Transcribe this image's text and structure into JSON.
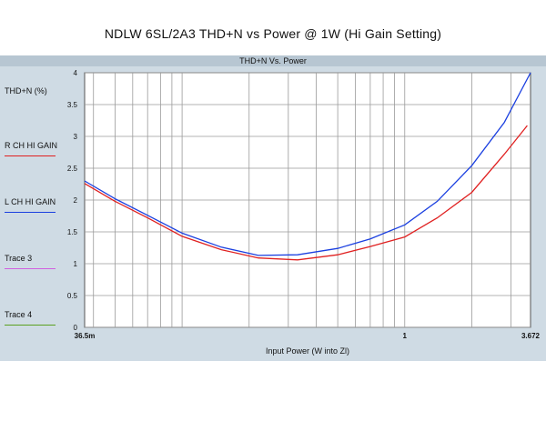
{
  "page_title": "NDLW 6SL/2A3 THD+N vs Power @ 1W (Hi Gain Setting)",
  "panel_title": "THD+N Vs. Power",
  "chart_data": {
    "type": "line",
    "title": "THD+N Vs. Power",
    "xlabel": "Input Power (W into Zl)",
    "ylabel": "THD+N (%)",
    "x_scale": "log",
    "xlim": [
      0.0365,
      3.672
    ],
    "ylim": [
      0,
      4
    ],
    "x_tick_labels": [
      "36.5m",
      "1",
      "3.672"
    ],
    "x_tick_values": [
      0.0365,
      1,
      3.672
    ],
    "y_ticks": [
      "0",
      "0.5",
      "1",
      "1.5",
      "2",
      "2.5",
      "3",
      "3.5",
      "4"
    ],
    "grid": true,
    "legend_position": "left",
    "series": [
      {
        "name": "R CH HI GAIN",
        "color": "#e02020",
        "x": [
          0.0365,
          0.05,
          0.07,
          0.1,
          0.15,
          0.22,
          0.33,
          0.5,
          0.7,
          1.0,
          1.4,
          2.0,
          2.8,
          3.55
        ],
        "y": [
          2.26,
          1.98,
          1.72,
          1.43,
          1.22,
          1.09,
          1.06,
          1.14,
          1.27,
          1.42,
          1.72,
          2.12,
          2.72,
          3.17
        ]
      },
      {
        "name": "L CH HI GAIN",
        "color": "#1a3fe0",
        "x": [
          0.0365,
          0.05,
          0.07,
          0.1,
          0.15,
          0.22,
          0.33,
          0.5,
          0.7,
          1.0,
          1.4,
          2.0,
          2.8,
          3.672
        ],
        "y": [
          2.3,
          2.02,
          1.76,
          1.48,
          1.26,
          1.13,
          1.14,
          1.24,
          1.39,
          1.61,
          1.98,
          2.54,
          3.22,
          4.0
        ]
      }
    ],
    "legend": [
      {
        "label": "THD+N (%)",
        "color": ""
      },
      {
        "label": "R CH HI GAIN",
        "color": "#e02020"
      },
      {
        "label": "L CH HI GAIN",
        "color": "#1a3fe0"
      },
      {
        "label": "Trace 3",
        "color": "#d060e0"
      },
      {
        "label": "Trace 4",
        "color": "#5aa020"
      }
    ]
  }
}
